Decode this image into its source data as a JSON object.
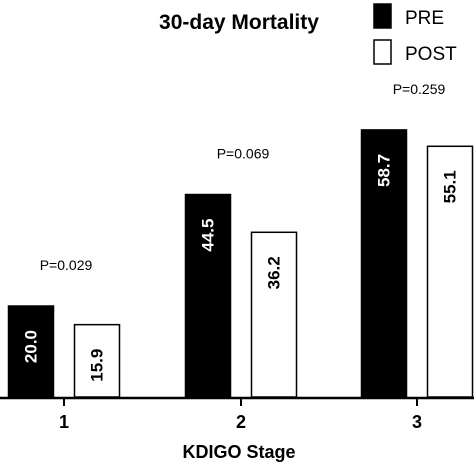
{
  "chart_data": {
    "type": "bar",
    "title": "30-day Mortality",
    "xlabel": "KDIGO Stage",
    "ylabel": "",
    "categories": [
      "1",
      "2",
      "3"
    ],
    "series": [
      {
        "name": "PRE",
        "values": [
          20.0,
          44.5,
          58.7
        ],
        "labels": [
          "20.0",
          "44.5",
          "58.7"
        ],
        "color": "#000000"
      },
      {
        "name": "POST",
        "values": [
          15.9,
          36.2,
          55.1
        ],
        "labels": [
          "15.9",
          "36.2",
          "55.1"
        ],
        "color": "#ffffff"
      }
    ],
    "annotations": [
      "P=0.029",
      "P=0.069",
      "P=0.259"
    ],
    "ylim": [
      0,
      64
    ],
    "grid": false,
    "legend_position": "top-right"
  }
}
